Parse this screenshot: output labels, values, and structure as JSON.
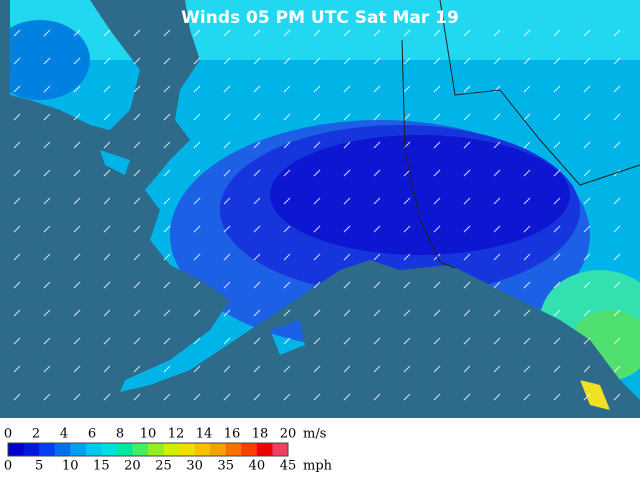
{
  "map": {
    "title": "Winds 05 PM UTC Sat Mar 19"
  },
  "legend": {
    "ms_labels": [
      0,
      2,
      4,
      6,
      8,
      10,
      12,
      14,
      16,
      18,
      20
    ],
    "ms_unit": "m/s",
    "mph_labels": [
      0,
      5,
      10,
      15,
      20,
      25,
      30,
      35,
      40,
      45
    ],
    "mph_unit": "mph"
  }
}
